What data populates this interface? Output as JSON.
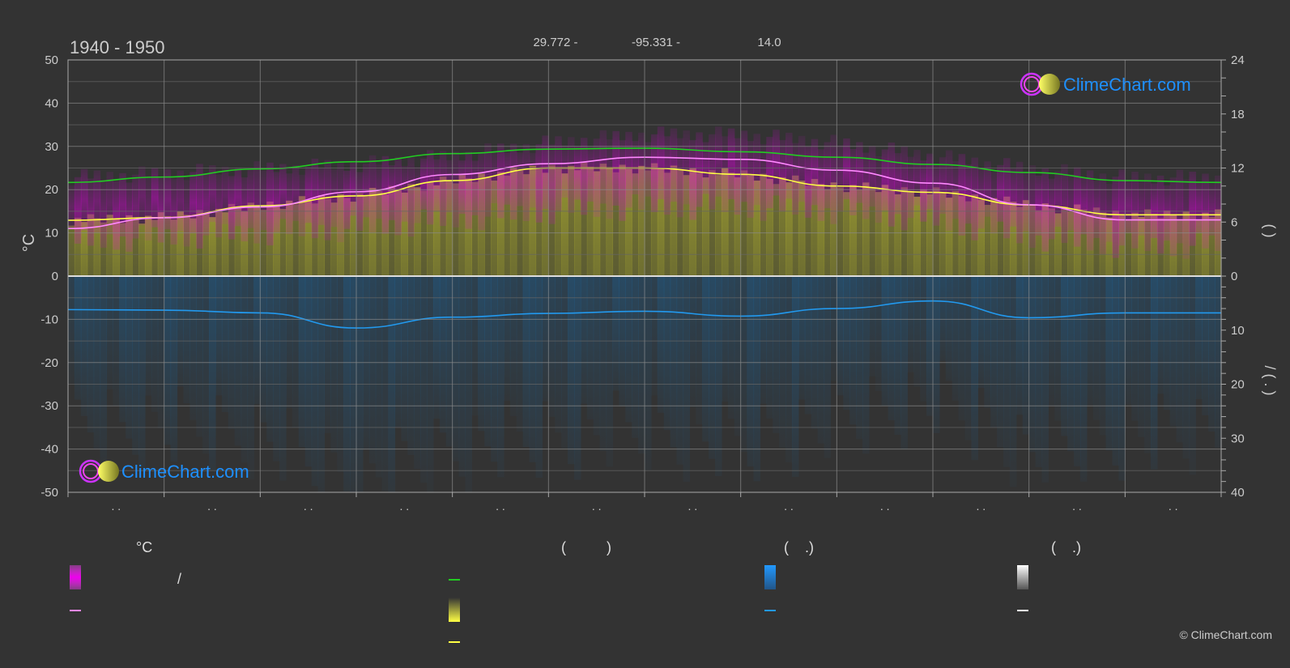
{
  "header": {
    "period": "1940 - 1950",
    "lat": "29.772 -",
    "lon": "-95.331 -",
    "elevation": "14.0"
  },
  "brand": {
    "name": "ClimeChart.com",
    "copyright": "© ClimeChart.com"
  },
  "colors": {
    "background": "#333333",
    "daylight": "#22cc22",
    "sunshine": "#cccc33",
    "sunshine_line": "#ffff44",
    "temp_band": "#dd00dd",
    "temp_line": "#ff88ff",
    "rain": "#2288dd",
    "rain_line": "#2299ee",
    "snow": "#ffffff",
    "brand_text": "#1e90ff"
  },
  "chart_data": {
    "type": "area",
    "y_left": {
      "label": "°C",
      "range": [
        -50,
        50
      ],
      "ticks": [
        "50",
        "40",
        "30",
        "20",
        "10",
        "0",
        "-10",
        "-20",
        "-30",
        "-40",
        "-50"
      ]
    },
    "y_right_top": {
      "range": [
        0,
        24
      ],
      "ticks": [
        "24",
        "18",
        "12",
        "6",
        "0"
      ],
      "label_glyphs": "(  )"
    },
    "y_right_bottom": {
      "range": [
        0,
        40
      ],
      "ticks": [
        "0",
        "10",
        "20",
        "30",
        "40"
      ],
      "label_glyphs": "/  ( . )"
    },
    "x_tick_labels": [
      ". .",
      ". .",
      ". .",
      ". .",
      ". .",
      ". .",
      ". .",
      ". .",
      ". .",
      ". .",
      ". .",
      ". ."
    ],
    "grid": true,
    "series": [
      {
        "key": "daylight",
        "axis": "right_top",
        "x": [
          0,
          1,
          2,
          3,
          4,
          5,
          6,
          7,
          8,
          9,
          10,
          11,
          12
        ],
        "values": [
          10.4,
          11.0,
          11.9,
          12.7,
          13.6,
          14.1,
          14.2,
          13.8,
          13.2,
          12.4,
          11.5,
          10.6,
          10.4
        ]
      },
      {
        "key": "sunshine",
        "axis": "right_top",
        "x": [
          0,
          1,
          2,
          3,
          4,
          5,
          6,
          7,
          8,
          9,
          10,
          11,
          12
        ],
        "values": [
          6.2,
          6.5,
          7.8,
          8.9,
          10.6,
          12.0,
          12.0,
          11.3,
          10.0,
          9.3,
          7.9,
          6.8,
          6.8
        ]
      },
      {
        "key": "mean_temp",
        "axis": "left",
        "x": [
          0,
          1,
          2,
          3,
          4,
          5,
          6,
          7,
          8,
          9,
          10,
          11,
          12
        ],
        "values": [
          11.0,
          13.5,
          16.0,
          19.5,
          23.5,
          26.0,
          27.5,
          27.0,
          24.5,
          21.5,
          16.5,
          13.0,
          13.0
        ]
      },
      {
        "key": "rain_mm",
        "axis": "right_bottom",
        "x": [
          0,
          1,
          2,
          3,
          4,
          5,
          6,
          7,
          8,
          9,
          10,
          11,
          12
        ],
        "values": [
          6.2,
          6.3,
          6.8,
          9.6,
          7.6,
          6.9,
          6.5,
          7.4,
          6.0,
          4.6,
          7.7,
          6.8,
          6.8
        ]
      },
      {
        "key": "temp_max_band",
        "axis": "left",
        "x": [
          0,
          1,
          2,
          3,
          4,
          5,
          6,
          7,
          8,
          9,
          10,
          11,
          12
        ],
        "values": [
          21,
          22,
          23,
          24,
          26,
          29,
          31,
          31,
          29,
          26,
          23,
          21,
          21
        ]
      },
      {
        "key": "temp_min_band",
        "axis": "left",
        "x": [
          0,
          1,
          2,
          3,
          4,
          5,
          6,
          7,
          8,
          9,
          10,
          11,
          12
        ],
        "values": [
          19,
          20,
          21,
          22,
          24,
          26,
          27,
          27,
          26,
          24,
          20,
          18,
          18
        ]
      }
    ]
  },
  "legend": {
    "col1_header": "°C",
    "col1_slash": "/",
    "col2_header": "(          )",
    "col3_header": "(    .)",
    "col4_header": "(    .)"
  }
}
